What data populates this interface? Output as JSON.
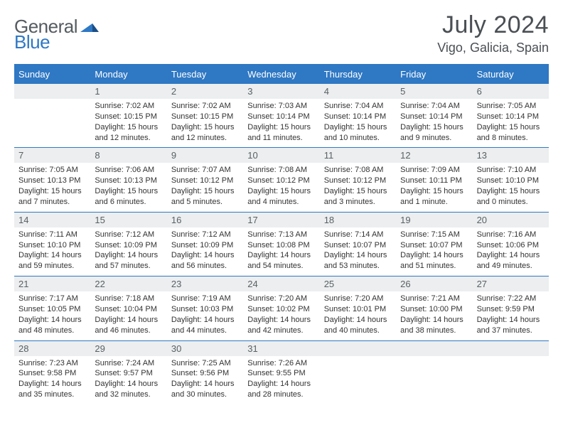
{
  "logo": {
    "text1": "General",
    "text2": "Blue"
  },
  "title": {
    "month": "July 2024",
    "location": "Vigo, Galicia, Spain"
  },
  "colors": {
    "accent": "#2f78c4",
    "daybar": "#eceeef",
    "text_dark": "#4a4f54",
    "text_body": "#333333",
    "logo_gray": "#555b60"
  },
  "dow": [
    "Sunday",
    "Monday",
    "Tuesday",
    "Wednesday",
    "Thursday",
    "Friday",
    "Saturday"
  ],
  "weeks": [
    [
      {
        "n": "",
        "sr": "",
        "ss": "",
        "dl": ""
      },
      {
        "n": "1",
        "sr": "Sunrise: 7:02 AM",
        "ss": "Sunset: 10:15 PM",
        "dl": "Daylight: 15 hours and 12 minutes."
      },
      {
        "n": "2",
        "sr": "Sunrise: 7:02 AM",
        "ss": "Sunset: 10:15 PM",
        "dl": "Daylight: 15 hours and 12 minutes."
      },
      {
        "n": "3",
        "sr": "Sunrise: 7:03 AM",
        "ss": "Sunset: 10:14 PM",
        "dl": "Daylight: 15 hours and 11 minutes."
      },
      {
        "n": "4",
        "sr": "Sunrise: 7:04 AM",
        "ss": "Sunset: 10:14 PM",
        "dl": "Daylight: 15 hours and 10 minutes."
      },
      {
        "n": "5",
        "sr": "Sunrise: 7:04 AM",
        "ss": "Sunset: 10:14 PM",
        "dl": "Daylight: 15 hours and 9 minutes."
      },
      {
        "n": "6",
        "sr": "Sunrise: 7:05 AM",
        "ss": "Sunset: 10:14 PM",
        "dl": "Daylight: 15 hours and 8 minutes."
      }
    ],
    [
      {
        "n": "7",
        "sr": "Sunrise: 7:05 AM",
        "ss": "Sunset: 10:13 PM",
        "dl": "Daylight: 15 hours and 7 minutes."
      },
      {
        "n": "8",
        "sr": "Sunrise: 7:06 AM",
        "ss": "Sunset: 10:13 PM",
        "dl": "Daylight: 15 hours and 6 minutes."
      },
      {
        "n": "9",
        "sr": "Sunrise: 7:07 AM",
        "ss": "Sunset: 10:12 PM",
        "dl": "Daylight: 15 hours and 5 minutes."
      },
      {
        "n": "10",
        "sr": "Sunrise: 7:08 AM",
        "ss": "Sunset: 10:12 PM",
        "dl": "Daylight: 15 hours and 4 minutes."
      },
      {
        "n": "11",
        "sr": "Sunrise: 7:08 AM",
        "ss": "Sunset: 10:12 PM",
        "dl": "Daylight: 15 hours and 3 minutes."
      },
      {
        "n": "12",
        "sr": "Sunrise: 7:09 AM",
        "ss": "Sunset: 10:11 PM",
        "dl": "Daylight: 15 hours and 1 minute."
      },
      {
        "n": "13",
        "sr": "Sunrise: 7:10 AM",
        "ss": "Sunset: 10:10 PM",
        "dl": "Daylight: 15 hours and 0 minutes."
      }
    ],
    [
      {
        "n": "14",
        "sr": "Sunrise: 7:11 AM",
        "ss": "Sunset: 10:10 PM",
        "dl": "Daylight: 14 hours and 59 minutes."
      },
      {
        "n": "15",
        "sr": "Sunrise: 7:12 AM",
        "ss": "Sunset: 10:09 PM",
        "dl": "Daylight: 14 hours and 57 minutes."
      },
      {
        "n": "16",
        "sr": "Sunrise: 7:12 AM",
        "ss": "Sunset: 10:09 PM",
        "dl": "Daylight: 14 hours and 56 minutes."
      },
      {
        "n": "17",
        "sr": "Sunrise: 7:13 AM",
        "ss": "Sunset: 10:08 PM",
        "dl": "Daylight: 14 hours and 54 minutes."
      },
      {
        "n": "18",
        "sr": "Sunrise: 7:14 AM",
        "ss": "Sunset: 10:07 PM",
        "dl": "Daylight: 14 hours and 53 minutes."
      },
      {
        "n": "19",
        "sr": "Sunrise: 7:15 AM",
        "ss": "Sunset: 10:07 PM",
        "dl": "Daylight: 14 hours and 51 minutes."
      },
      {
        "n": "20",
        "sr": "Sunrise: 7:16 AM",
        "ss": "Sunset: 10:06 PM",
        "dl": "Daylight: 14 hours and 49 minutes."
      }
    ],
    [
      {
        "n": "21",
        "sr": "Sunrise: 7:17 AM",
        "ss": "Sunset: 10:05 PM",
        "dl": "Daylight: 14 hours and 48 minutes."
      },
      {
        "n": "22",
        "sr": "Sunrise: 7:18 AM",
        "ss": "Sunset: 10:04 PM",
        "dl": "Daylight: 14 hours and 46 minutes."
      },
      {
        "n": "23",
        "sr": "Sunrise: 7:19 AM",
        "ss": "Sunset: 10:03 PM",
        "dl": "Daylight: 14 hours and 44 minutes."
      },
      {
        "n": "24",
        "sr": "Sunrise: 7:20 AM",
        "ss": "Sunset: 10:02 PM",
        "dl": "Daylight: 14 hours and 42 minutes."
      },
      {
        "n": "25",
        "sr": "Sunrise: 7:20 AM",
        "ss": "Sunset: 10:01 PM",
        "dl": "Daylight: 14 hours and 40 minutes."
      },
      {
        "n": "26",
        "sr": "Sunrise: 7:21 AM",
        "ss": "Sunset: 10:00 PM",
        "dl": "Daylight: 14 hours and 38 minutes."
      },
      {
        "n": "27",
        "sr": "Sunrise: 7:22 AM",
        "ss": "Sunset: 9:59 PM",
        "dl": "Daylight: 14 hours and 37 minutes."
      }
    ],
    [
      {
        "n": "28",
        "sr": "Sunrise: 7:23 AM",
        "ss": "Sunset: 9:58 PM",
        "dl": "Daylight: 14 hours and 35 minutes."
      },
      {
        "n": "29",
        "sr": "Sunrise: 7:24 AM",
        "ss": "Sunset: 9:57 PM",
        "dl": "Daylight: 14 hours and 32 minutes."
      },
      {
        "n": "30",
        "sr": "Sunrise: 7:25 AM",
        "ss": "Sunset: 9:56 PM",
        "dl": "Daylight: 14 hours and 30 minutes."
      },
      {
        "n": "31",
        "sr": "Sunrise: 7:26 AM",
        "ss": "Sunset: 9:55 PM",
        "dl": "Daylight: 14 hours and 28 minutes."
      },
      {
        "n": "",
        "sr": "",
        "ss": "",
        "dl": ""
      },
      {
        "n": "",
        "sr": "",
        "ss": "",
        "dl": ""
      },
      {
        "n": "",
        "sr": "",
        "ss": "",
        "dl": ""
      }
    ]
  ]
}
